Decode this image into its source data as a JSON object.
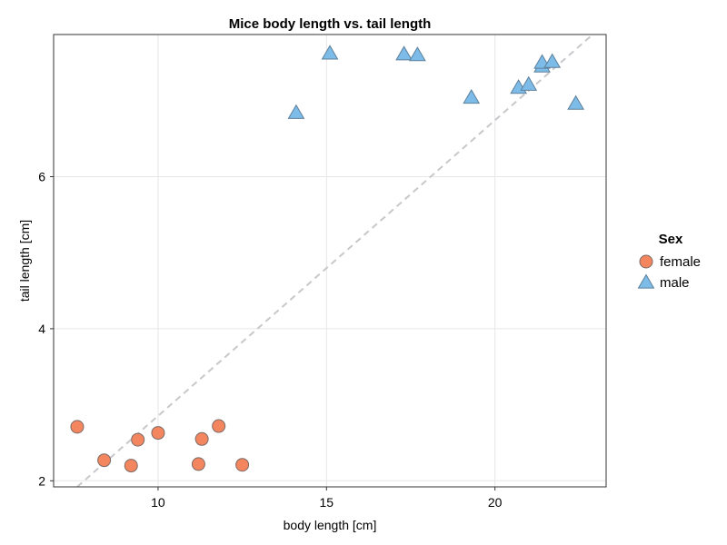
{
  "chart_data": {
    "type": "scatter",
    "title": "Mice body length vs. tail length",
    "xlabel": "body length [cm]",
    "ylabel": "tail length [cm]",
    "xlim": [
      6.9,
      23.3
    ],
    "ylim": [
      1.92,
      7.87
    ],
    "xticks": [
      10,
      15,
      20
    ],
    "yticks": [
      2,
      4,
      6
    ],
    "grid": true,
    "legend": {
      "title": "Sex",
      "position": "right"
    },
    "reference_line": {
      "style": "dashed",
      "color": "#c8c8cc",
      "x": [
        7.6,
        22.9
      ],
      "y": [
        1.92,
        7.87
      ]
    },
    "series": [
      {
        "name": "female",
        "marker": "circle",
        "color": "#f4865f",
        "x": [
          7.6,
          8.4,
          9.2,
          9.4,
          10.0,
          11.2,
          11.3,
          11.8,
          12.5
        ],
        "y": [
          2.71,
          2.27,
          2.2,
          2.54,
          2.63,
          2.22,
          2.55,
          2.72,
          2.21
        ]
      },
      {
        "name": "male",
        "marker": "triangle",
        "color": "#7dbce8",
        "x": [
          14.1,
          15.1,
          17.3,
          17.7,
          19.3,
          20.7,
          21.0,
          21.4,
          21.4,
          21.7,
          22.4
        ],
        "y": [
          6.84,
          7.62,
          7.61,
          7.6,
          7.04,
          7.17,
          7.21,
          7.45,
          7.5,
          7.51,
          6.96
        ]
      }
    ]
  }
}
